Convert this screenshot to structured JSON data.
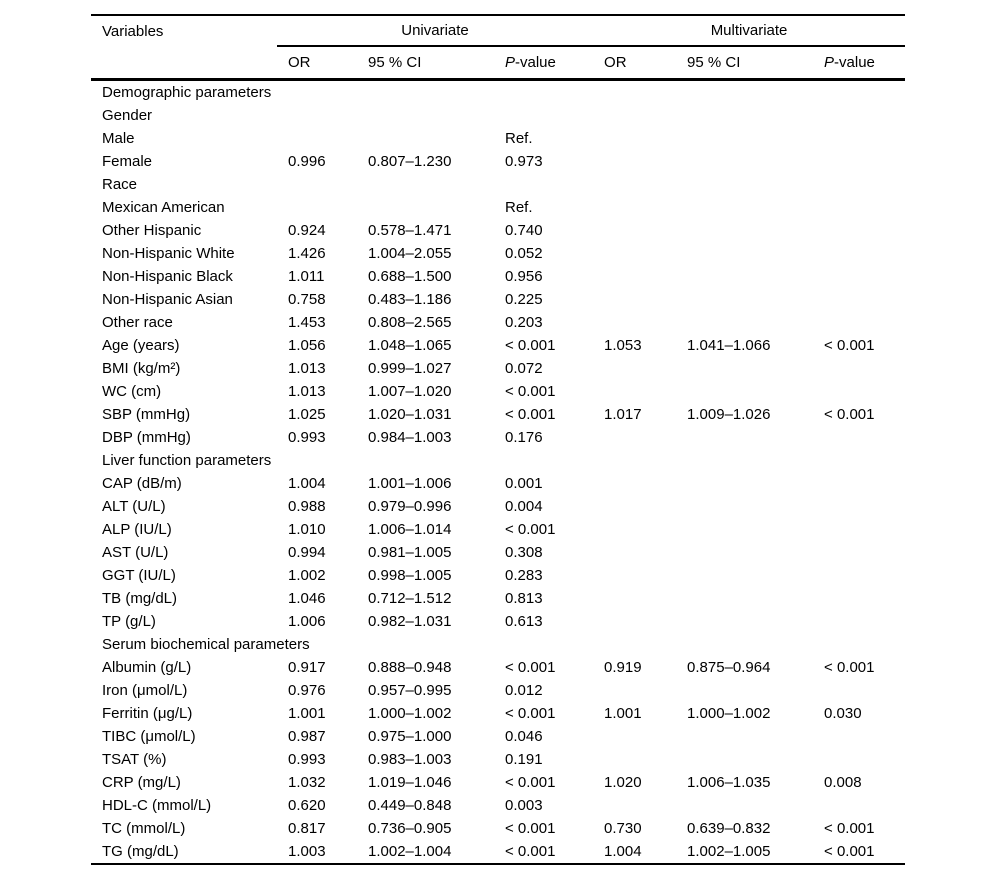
{
  "page": {
    "background": "#ffffff",
    "text_color": "#000000"
  },
  "table": {
    "variables_header": "Variables",
    "group_headers": {
      "univariate": "Univariate",
      "multivariate": "Multivariate"
    },
    "sub_headers": {
      "uni_or": "OR",
      "uni_ci": "95 % CI",
      "uni_p": "P-value",
      "multi_or": "OR",
      "multi_ci": "95 % CI",
      "multi_p": "P-value"
    },
    "rows": [
      [
        "Demographic parameters",
        "",
        "",
        "",
        "",
        "",
        ""
      ],
      [
        "Gender",
        "",
        "",
        "",
        "",
        "",
        ""
      ],
      [
        "Male",
        "",
        "",
        "Ref.",
        "",
        "",
        ""
      ],
      [
        "Female",
        "0.996",
        "0.807–1.230",
        "0.973",
        "",
        "",
        ""
      ],
      [
        "Race",
        "",
        "",
        "",
        "",
        "",
        ""
      ],
      [
        "Mexican American",
        "",
        "",
        "Ref.",
        "",
        "",
        ""
      ],
      [
        "Other Hispanic",
        "0.924",
        "0.578–1.471",
        "0.740",
        "",
        "",
        ""
      ],
      [
        "Non-Hispanic White",
        "1.426",
        "1.004–2.055",
        "0.052",
        "",
        "",
        ""
      ],
      [
        "Non-Hispanic Black",
        "1.011",
        "0.688–1.500",
        "0.956",
        "",
        "",
        ""
      ],
      [
        "Non-Hispanic Asian",
        "0.758",
        "0.483–1.186",
        "0.225",
        "",
        "",
        ""
      ],
      [
        "Other race",
        "1.453",
        "0.808–2.565",
        "0.203",
        "",
        "",
        ""
      ],
      [
        "Age (years)",
        "1.056",
        "1.048–1.065",
        "< 0.001",
        "1.053",
        "1.041–1.066",
        "< 0.001"
      ],
      [
        "BMI (kg/m²)",
        "1.013",
        "0.999–1.027",
        "0.072",
        "",
        "",
        ""
      ],
      [
        "WC (cm)",
        "1.013",
        "1.007–1.020",
        "< 0.001",
        "",
        "",
        ""
      ],
      [
        "SBP (mmHg)",
        "1.025",
        "1.020–1.031",
        "< 0.001",
        "1.017",
        "1.009–1.026",
        "< 0.001"
      ],
      [
        "DBP (mmHg)",
        "0.993",
        "0.984–1.003",
        "0.176",
        "",
        "",
        ""
      ],
      [
        "Liver function parameters",
        "",
        "",
        "",
        "",
        "",
        ""
      ],
      [
        "CAP (dB/m)",
        "1.004",
        "1.001–1.006",
        "0.001",
        "",
        "",
        ""
      ],
      [
        "ALT (U/L)",
        "0.988",
        "0.979–0.996",
        "0.004",
        "",
        "",
        ""
      ],
      [
        "ALP (IU/L)",
        "1.010",
        "1.006–1.014",
        "< 0.001",
        "",
        "",
        ""
      ],
      [
        "AST (U/L)",
        "0.994",
        "0.981–1.005",
        "0.308",
        "",
        "",
        ""
      ],
      [
        "GGT (IU/L)",
        "1.002",
        "0.998–1.005",
        "0.283",
        "",
        "",
        ""
      ],
      [
        "TB (mg/dL)",
        "1.046",
        "0.712–1.512",
        "0.813",
        "",
        "",
        ""
      ],
      [
        "TP (g/L)",
        "1.006",
        "0.982–1.031",
        "0.613",
        "",
        "",
        ""
      ],
      [
        "Serum biochemical parameters",
        "",
        "",
        "",
        "",
        "",
        ""
      ],
      [
        "Albumin (g/L)",
        "0.917",
        "0.888–0.948",
        "< 0.001",
        "0.919",
        "0.875–0.964",
        "< 0.001"
      ],
      [
        "Iron (μmol/L)",
        "0.976",
        "0.957–0.995",
        "0.012",
        "",
        "",
        ""
      ],
      [
        "Ferritin (μg/L)",
        "1.001",
        "1.000–1.002",
        "< 0.001",
        "1.001",
        "1.000–1.002",
        "0.030"
      ],
      [
        "TIBC (μmol/L)",
        "0.987",
        "0.975–1.000",
        "0.046",
        "",
        "",
        ""
      ],
      [
        "TSAT (%)",
        "0.993",
        "0.983–1.003",
        "0.191",
        "",
        "",
        ""
      ],
      [
        "CRP (mg/L)",
        "1.032",
        "1.019–1.046",
        "< 0.001",
        "1.020",
        "1.006–1.035",
        "0.008"
      ],
      [
        "HDL-C (mmol/L)",
        "0.620",
        "0.449–0.848",
        "0.003",
        "",
        "",
        ""
      ],
      [
        "TC (mmol/L)",
        "0.817",
        "0.736–0.905",
        "< 0.001",
        "0.730",
        "0.639–0.832",
        "< 0.001"
      ],
      [
        "TG (mg/dL)",
        "1.003",
        "1.002–1.004",
        "< 0.001",
        "1.004",
        "1.002–1.005",
        "< 0.001"
      ]
    ]
  }
}
